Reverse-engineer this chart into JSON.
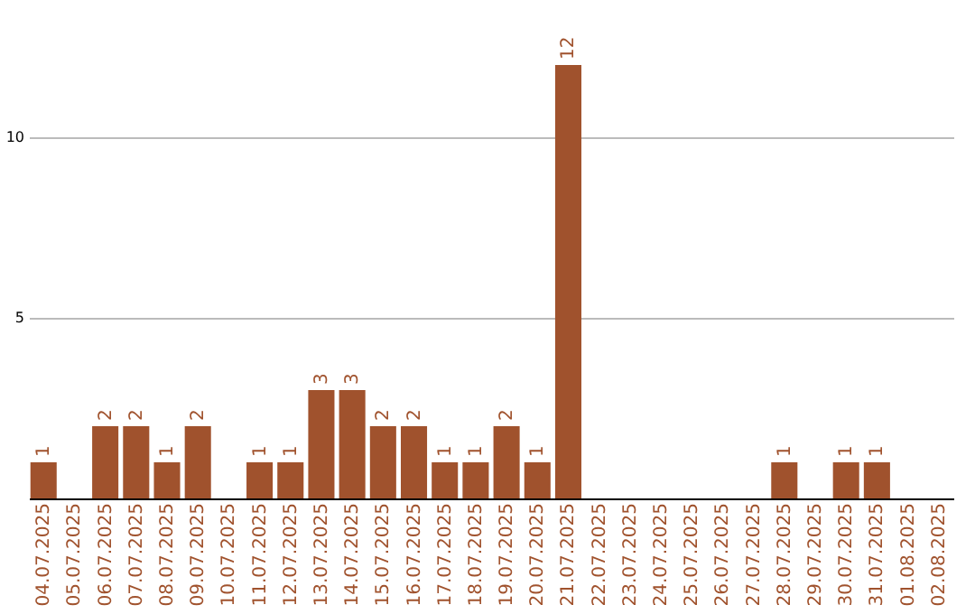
{
  "chart_data": {
    "type": "bar",
    "categories": [
      "04.07.2025",
      "05.07.2025",
      "06.07.2025",
      "07.07.2025",
      "08.07.2025",
      "09.07.2025",
      "10.07.2025",
      "11.07.2025",
      "12.07.2025",
      "13.07.2025",
      "14.07.2025",
      "15.07.2025",
      "16.07.2025",
      "17.07.2025",
      "18.07.2025",
      "19.07.2025",
      "20.07.2025",
      "21.07.2025",
      "22.07.2025",
      "23.07.2025",
      "24.07.2025",
      "25.07.2025",
      "26.07.2025",
      "27.07.2025",
      "28.07.2025",
      "29.07.2025",
      "30.07.2025",
      "31.07.2025",
      "01.08.2025",
      "02.08.2025"
    ],
    "values": [
      1,
      0,
      2,
      2,
      1,
      2,
      0,
      1,
      1,
      3,
      3,
      2,
      2,
      1,
      1,
      2,
      1,
      12,
      0,
      0,
      0,
      0,
      0,
      0,
      1,
      0,
      1,
      1,
      0,
      0
    ],
    "value_labels": [
      "1",
      null,
      "2",
      "2",
      "1",
      "2",
      null,
      "1",
      "1",
      "3",
      "3",
      "2",
      "2",
      "1",
      "1",
      "2",
      "1",
      "12",
      null,
      null,
      null,
      null,
      null,
      null,
      "1",
      null,
      "1",
      "1",
      null,
      null
    ],
    "color": "#a0522d",
    "ylim": [
      0,
      12
    ],
    "yticks": [
      5,
      10
    ],
    "grid": "y"
  }
}
